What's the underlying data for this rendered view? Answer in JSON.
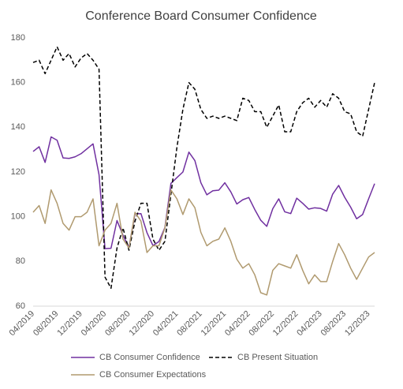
{
  "chart_data": {
    "type": "line",
    "title": "Conference Board Consumer Confidence",
    "categories": [
      "04/2019",
      null,
      null,
      null,
      "08/2019",
      null,
      null,
      null,
      "12/2019",
      null,
      null,
      null,
      "04/2020",
      null,
      null,
      null,
      "08/2020",
      null,
      null,
      null,
      "12/2020",
      null,
      null,
      null,
      "04/2021",
      null,
      null,
      null,
      "08/2021",
      null,
      null,
      null,
      "12/2021",
      null,
      null,
      null,
      "04/2022",
      null,
      null,
      null,
      "08/2022",
      null,
      null,
      null,
      "12/2022",
      null,
      null,
      null,
      "04/2023",
      null,
      null,
      null,
      "08/2023",
      null,
      null,
      null,
      "12/2023",
      null
    ],
    "series": [
      {
        "name": "CB Consumer Confidence",
        "color": "#7030a0",
        "dashed": false,
        "values": [
          129.2,
          131.3,
          124.3,
          135.7,
          134.2,
          126.3,
          126.1,
          126.8,
          128.2,
          130.4,
          132.6,
          118.8,
          85.7,
          85.9,
          98.3,
          91.7,
          86.3,
          101.3,
          101.4,
          92.9,
          87.1,
          88.9,
          95.2,
          114.9,
          117.5,
          120.0,
          128.9,
          125.1,
          115.2,
          109.8,
          111.6,
          111.9,
          115.2,
          111.1,
          105.7,
          107.6,
          108.6,
          103.2,
          98.4,
          95.7,
          103.6,
          108.0,
          102.2,
          101.4,
          108.3,
          106.0,
          103.4,
          104.0,
          103.7,
          102.5,
          110.1,
          114.0,
          108.7,
          104.3,
          99.1,
          101.0,
          108.0,
          114.8
        ]
      },
      {
        "name": "CB Present Situation",
        "color": "#000000",
        "dashed": true,
        "values": [
          169,
          170,
          164,
          170,
          176,
          170,
          173,
          167,
          171,
          173,
          170,
          166,
          73,
          68,
          86,
          95,
          85,
          98,
          106,
          106,
          90,
          85,
          89,
          110,
          131,
          148,
          160,
          157,
          148,
          144,
          145,
          144,
          145,
          144,
          143,
          153,
          152,
          147,
          147,
          140,
          145,
          150,
          138,
          138,
          147,
          151,
          153,
          149,
          152,
          149,
          155,
          153,
          147,
          146,
          138,
          136,
          148,
          160
        ]
      },
      {
        "name": "CB Consumer  Expectations",
        "color": "#b09a6f",
        "dashed": false,
        "values": [
          102,
          105,
          97,
          112,
          106,
          97,
          94,
          100,
          100,
          102,
          108,
          87,
          94,
          97,
          106,
          90,
          86,
          102,
          98,
          84,
          87,
          87,
          95,
          112,
          108,
          101,
          108,
          104,
          93,
          87,
          89,
          90,
          95,
          89,
          81,
          77,
          79,
          74,
          66,
          65,
          76,
          79,
          78,
          77,
          83,
          76,
          70,
          74,
          71,
          71,
          80,
          88,
          83,
          77,
          72,
          77,
          82,
          84
        ]
      }
    ],
    "ylim": [
      60,
      180
    ],
    "yticks": [
      60,
      80,
      100,
      120,
      140,
      160,
      180
    ],
    "grid": false,
    "legend": "bottom"
  }
}
